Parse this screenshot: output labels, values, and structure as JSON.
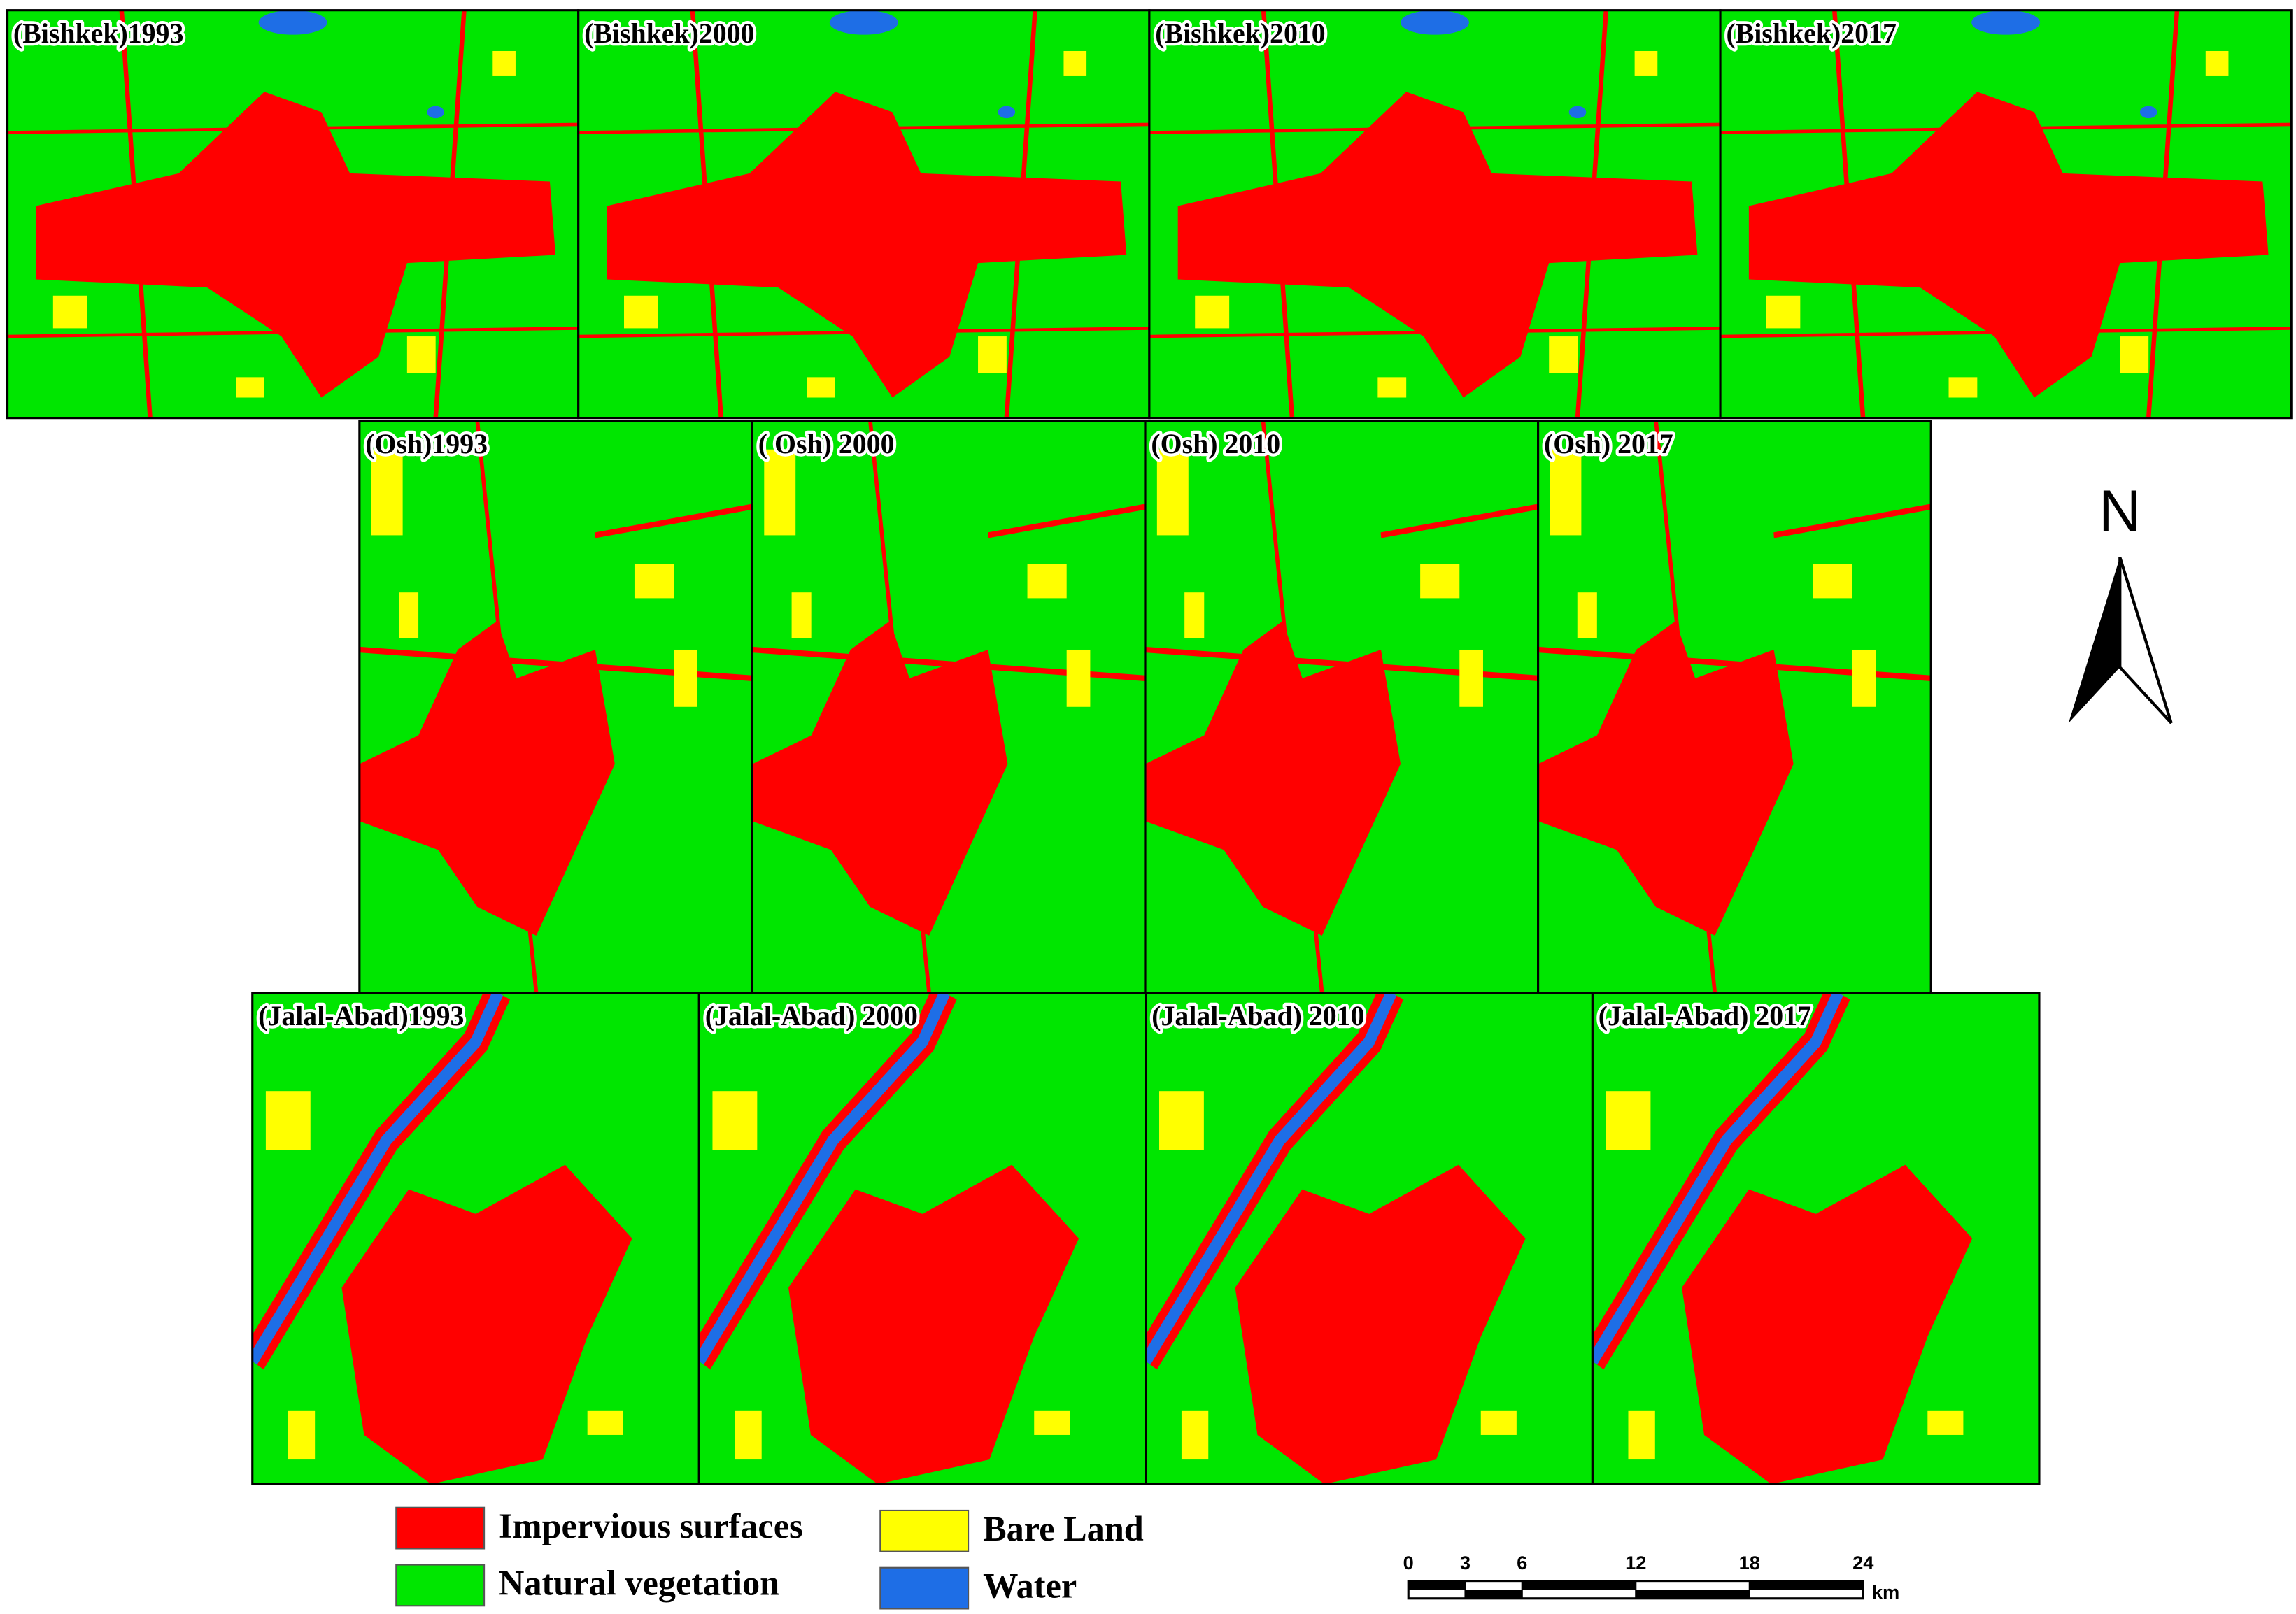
{
  "panels": [
    [
      "(Bishkek)1993",
      "(Bishkek)2000",
      "(Bishkek)2010",
      "(Bishkek)2017"
    ],
    [
      "(Osh)1993",
      "( Osh) 2000",
      "(Osh) 2010",
      "(Osh) 2017"
    ],
    [
      "(Jalal-Abad)1993",
      "(Jalal-Abad) 2000",
      "(Jalal-Abad) 2010",
      "(Jalal-Abad) 2017"
    ]
  ],
  "legend": [
    {
      "label": "Impervious surfaces",
      "color": "#ff0000"
    },
    {
      "label": "Natural vegetation",
      "color": "#00e600"
    },
    {
      "label": "Bare Land",
      "color": "#ffff00"
    },
    {
      "label": "Water",
      "color": "#1e6ee6"
    }
  ],
  "north_arrow": "N",
  "scale_bar": {
    "ticks": [
      0,
      3,
      6,
      12,
      18,
      24
    ],
    "unit": "km"
  }
}
